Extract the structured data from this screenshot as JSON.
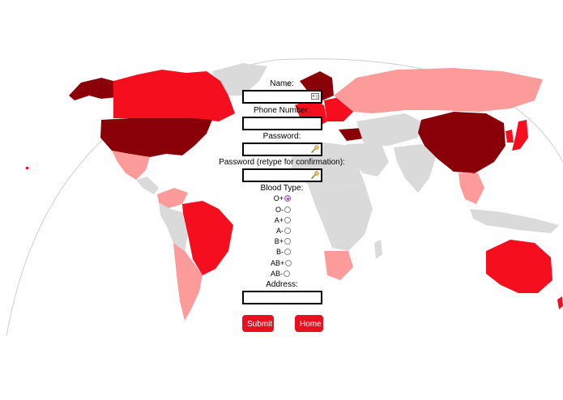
{
  "colors": {
    "ocean": "#ffffff",
    "land_none": "#dadada",
    "level_low": "#fd9b9b",
    "level_mid": "#f50f1e",
    "level_high": "#8a0009",
    "button_bg": "#e8101e",
    "button_text": "#ffffff"
  },
  "form": {
    "name_label": "Name:",
    "phone_label": "Phone Number:",
    "password_label": "Password:",
    "password_confirm_label": "Password (retype for confirmation):",
    "blood_type_label": "Blood Type:",
    "blood_types": [
      "O+",
      "O-",
      "A+",
      "A-",
      "B+",
      "B-",
      "AB+",
      "AB-"
    ],
    "blood_type_selected": "O+",
    "address_label": "Address:",
    "name_value": "",
    "phone_value": "",
    "password_value": "",
    "password_confirm_value": "",
    "address_value": ""
  },
  "buttons": {
    "submit": "Submit",
    "home": "Home"
  },
  "icons": {
    "name_field": "contact-card-icon",
    "password_field": "key-icon",
    "password_confirm_field": "key-icon"
  }
}
